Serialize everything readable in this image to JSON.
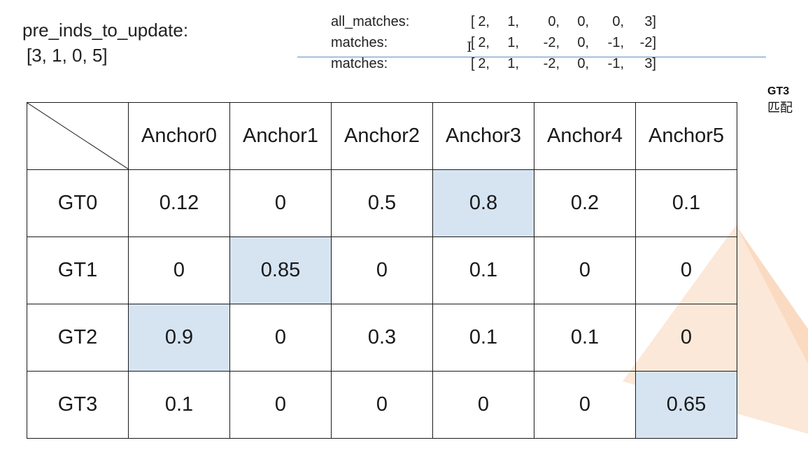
{
  "pre_inds": {
    "title": "pre_inds_to_update:",
    "value": "[3, 1, 0, 5]"
  },
  "matches": [
    {
      "label": "all_matches:",
      "values": [
        "2,",
        "1,",
        "0,",
        "0,",
        "0,",
        "3]"
      ]
    },
    {
      "label": "matches:",
      "values": [
        "2,",
        "1,",
        "-2,",
        "0,",
        "-1,",
        "-2]"
      ]
    },
    {
      "label": "matches:",
      "values": [
        "2,",
        "1,",
        "-2,",
        "0,",
        "-1,",
        "3]"
      ]
    }
  ],
  "side_note": {
    "line1": "GT3",
    "line2": "匹配"
  },
  "table": {
    "columns": [
      "Anchor0",
      "Anchor1",
      "Anchor2",
      "Anchor3",
      "Anchor4",
      "Anchor5"
    ],
    "rows": [
      {
        "label": "GT0",
        "cells": [
          "0.12",
          "0",
          "0.5",
          "0.8",
          "0.2",
          "0.1"
        ],
        "highlight": 3
      },
      {
        "label": "GT1",
        "cells": [
          "0",
          "0.85",
          "0",
          "0.1",
          "0",
          "0"
        ],
        "highlight": 1
      },
      {
        "label": "GT2",
        "cells": [
          "0.9",
          "0",
          "0.3",
          "0.1",
          "0.1",
          "0"
        ],
        "highlight": 0
      },
      {
        "label": "GT3",
        "cells": [
          "0.1",
          "0",
          "0",
          "0",
          "0",
          "0.65"
        ],
        "highlight": 5
      }
    ]
  },
  "colors": {
    "highlight": "#d6e4f2",
    "divider": "#5b8fc4",
    "decoration": "#f7c9a1"
  }
}
